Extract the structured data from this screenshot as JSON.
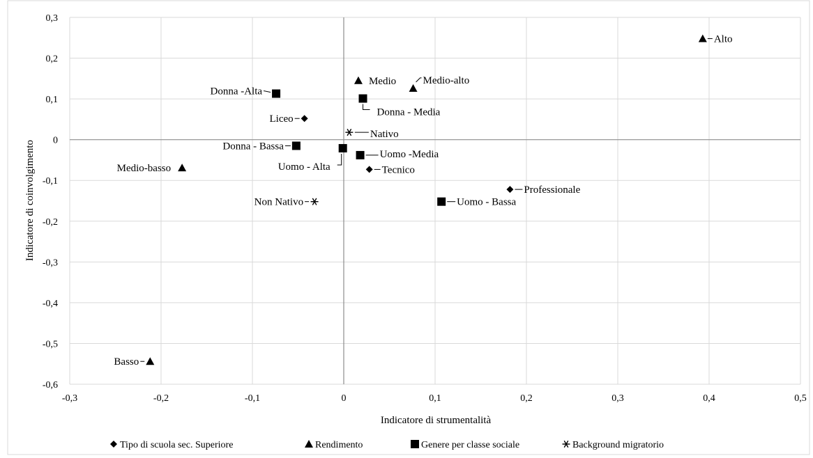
{
  "chart_data": {
    "type": "scatter",
    "title": "",
    "xlabel": "Indicatore di strumentalità",
    "ylabel": "Indicatore di coinvolgimento",
    "xlim": [
      -0.3,
      0.5
    ],
    "ylim": [
      -0.6,
      0.3
    ],
    "x_ticks": [
      -0.3,
      -0.2,
      -0.1,
      0,
      0.1,
      0.2,
      0.3,
      0.4,
      0.5
    ],
    "y_ticks": [
      0.3,
      0.2,
      0.1,
      0,
      -0.1,
      -0.2,
      -0.3,
      -0.4,
      -0.5,
      -0.6
    ],
    "x_tick_labels": [
      "-0,3",
      "-0,2",
      "-0,1",
      "0",
      "0,1",
      "0,2",
      "0,3",
      "0,4",
      "0,5"
    ],
    "y_tick_labels": [
      "0,3",
      "0,2",
      "0,1",
      "0",
      "-0,1",
      "-0,2",
      "-0,3",
      "-0,4",
      "-0,5",
      "-0,6"
    ],
    "grid": true,
    "legend_position": "bottom",
    "series": [
      {
        "name": "Tipo di scuola sec. Superiore",
        "marker": "diamond",
        "legend_symbol": "◆",
        "points": [
          {
            "label": "Liceo",
            "x": -0.043,
            "y": 0.052
          },
          {
            "label": "Tecnico",
            "x": 0.028,
            "y": -0.073
          },
          {
            "label": "Professionale",
            "x": 0.182,
            "y": -0.122
          }
        ]
      },
      {
        "name": "Rendimento",
        "marker": "triangle",
        "legend_symbol": "▲",
        "points": [
          {
            "label": "Alto",
            "x": 0.393,
            "y": 0.248
          },
          {
            "label": "Medio",
            "x": 0.016,
            "y": 0.145
          },
          {
            "label": "Medio-alto",
            "x": 0.076,
            "y": 0.126
          },
          {
            "label": "Medio-basso",
            "x": -0.177,
            "y": -0.069
          },
          {
            "label": "Basso",
            "x": -0.212,
            "y": -0.544
          }
        ]
      },
      {
        "name": "Genere per classe sociale",
        "marker": "square",
        "legend_symbol": "■",
        "points": [
          {
            "label": "Donna -Alta",
            "x": -0.074,
            "y": 0.113
          },
          {
            "label": "Donna - Media",
            "x": 0.021,
            "y": 0.101
          },
          {
            "label": "Donna - Bassa",
            "x": -0.052,
            "y": -0.015
          },
          {
            "label": "Uomo - Alta",
            "x": -0.001,
            "y": -0.021
          },
          {
            "label": "Uomo -Media",
            "x": 0.018,
            "y": -0.038
          },
          {
            "label": "Uomo - Bassa",
            "x": 0.107,
            "y": -0.152
          }
        ]
      },
      {
        "name": "Background migratorio",
        "marker": "star",
        "legend_symbol": "✳",
        "points": [
          {
            "label": "Nativo",
            "x": 0.006,
            "y": 0.018
          },
          {
            "label": "Non Nativo",
            "x": -0.032,
            "y": -0.152
          }
        ]
      }
    ]
  }
}
